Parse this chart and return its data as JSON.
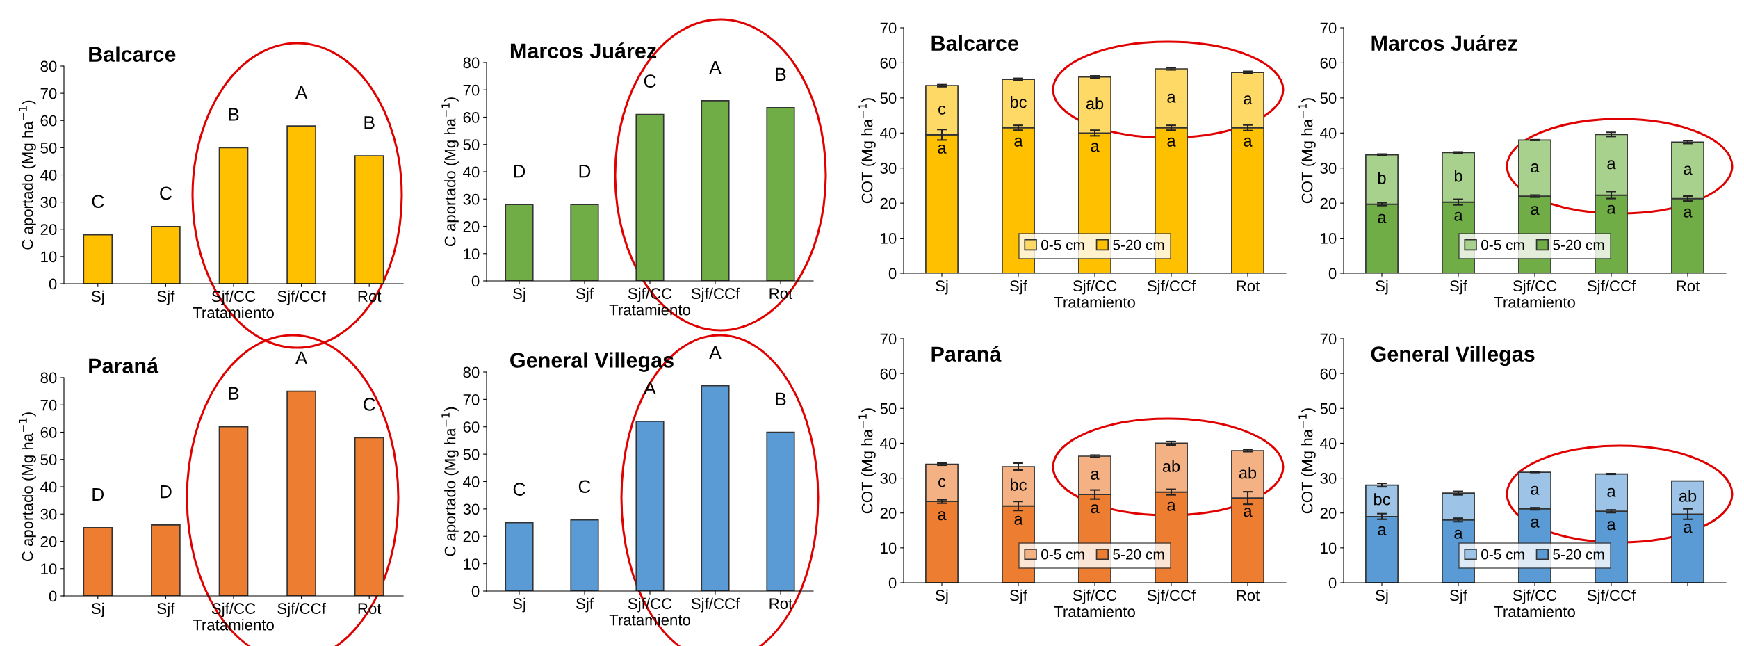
{
  "chart_data": [
    {
      "type": "bar",
      "title": "Balcarce",
      "xlabel": "Tratamiento",
      "ylabel": "C aportado (Mg ha$^{−1}$)",
      "categories": [
        "Sj",
        "Sjf",
        "Sjf/CC",
        "Sjf/CCf",
        "Rot"
      ],
      "values": [
        18,
        21,
        50,
        58,
        47
      ],
      "color": "#ffc000",
      "value_labels": [
        "C",
        "C",
        "B",
        "A",
        "B"
      ],
      "ylim": [
        0,
        80
      ],
      "yticks": [
        0,
        10,
        20,
        30,
        40,
        50,
        60,
        70,
        80
      ]
    },
    {
      "type": "bar",
      "title": "Marcos Juárez",
      "xlabel": "Tratamiento",
      "ylabel": "C aportado (Mg ha$^{−1}$)",
      "categories": [
        "Sj",
        "Sjf",
        "Sjf/CC",
        "Sjf/CCf",
        "Rot"
      ],
      "values": [
        28,
        28,
        61,
        66,
        63.5
      ],
      "color": "#70ad47",
      "value_labels": [
        "D",
        "D",
        "C",
        "A",
        "B"
      ],
      "ylim": [
        0,
        80
      ],
      "yticks": [
        0,
        10,
        20,
        30,
        40,
        50,
        60,
        70,
        80
      ]
    },
    {
      "type": "bar",
      "title": "Balcarce",
      "xlabel": "Tratamiento",
      "ylabel": "COT (Mg ha$^{−1}$)",
      "categories": [
        "Sj",
        "Sjf",
        "Sjf/CC",
        "Sjf/CCf",
        "Rot"
      ],
      "stacked": true,
      "legend": "bottom",
      "ylim": [
        0,
        70
      ],
      "yticks": [
        0,
        10,
        20,
        30,
        40,
        50,
        60,
        70
      ],
      "series": [
        {
          "name": "5-20 cm",
          "color": "#ffc000",
          "values": [
            39.5,
            41.5,
            40,
            41.5,
            41.5
          ],
          "errors": [
            1.5,
            0.7,
            0.8,
            0.7,
            0.8
          ],
          "value_labels": [
            "a",
            "a",
            "a",
            "a",
            "a"
          ]
        },
        {
          "name": "0-5 cm",
          "color": "#ffd966",
          "values": [
            14,
            13.8,
            16,
            16.8,
            15.8
          ],
          "errors": [
            0.3,
            0.3,
            0.3,
            0.3,
            0.3
          ],
          "value_labels": [
            "c",
            "bc",
            "ab",
            "a",
            "a"
          ]
        }
      ]
    },
    {
      "type": "bar",
      "title": "Marcos Juárez",
      "xlabel": "Tratamiento",
      "ylabel": "COT (Mg ha$^{−1}$)",
      "categories": [
        "Sj",
        "Sjf",
        "Sjf/CC",
        "Sjf/CCf",
        "Rot"
      ],
      "stacked": true,
      "legend": "bottom",
      "ylim": [
        0,
        70
      ],
      "yticks": [
        0,
        10,
        20,
        30,
        40,
        50,
        60,
        70
      ],
      "series": [
        {
          "name": "5-20 cm",
          "color": "#70ad47",
          "values": [
            19.7,
            20.3,
            22,
            22.3,
            21.3
          ],
          "errors": [
            0.4,
            0.8,
            0.3,
            1,
            0.7
          ],
          "value_labels": [
            "a",
            "a",
            "a",
            "a",
            "a"
          ]
        },
        {
          "name": "0-5 cm",
          "color": "#a9d18e",
          "values": [
            14.1,
            14.1,
            16,
            17.3,
            16.1
          ],
          "errors": [
            0.2,
            0.2,
            0.1,
            0.6,
            0.4
          ],
          "value_labels": [
            "b",
            "b",
            "a",
            "a",
            "a"
          ]
        }
      ]
    },
    {
      "type": "bar",
      "title": "Paraná",
      "xlabel": "Tratamiento",
      "ylabel": "C aportado (Mg ha$^{−1}$)",
      "categories": [
        "Sj",
        "Sjf",
        "Sjf/CC",
        "Sjf/CCf",
        "Rot"
      ],
      "values": [
        25,
        26,
        62,
        75,
        58
      ],
      "color": "#ed7d31",
      "value_labels": [
        "D",
        "D",
        "B",
        "A",
        "C"
      ],
      "ylim": [
        0,
        80
      ],
      "yticks": [
        0,
        10,
        20,
        30,
        40,
        50,
        60,
        70,
        80
      ]
    },
    {
      "type": "bar",
      "title": "General Villegas",
      "xlabel": "Tratamiento",
      "ylabel": "C aportado (Mg ha$^{−1}$)",
      "categories": [
        "Sj",
        "Sjf",
        "Sjf/CC",
        "Sjf/CCf",
        "Rot"
      ],
      "values": [
        25,
        26,
        62,
        75,
        58
      ],
      "color": "#5b9bd5",
      "value_labels": [
        "C",
        "C",
        "A",
        "A",
        "B"
      ],
      "ylim": [
        0,
        80
      ],
      "yticks": [
        0,
        10,
        20,
        30,
        40,
        50,
        60,
        70,
        80
      ]
    },
    {
      "type": "bar",
      "title": "Paraná",
      "xlabel": "Tratamiento",
      "ylabel": "COT (Mg ha$^{−1}$)",
      "categories": [
        "Sj",
        "Sjf",
        "Sjf/CC",
        "Sjf/CCf",
        "Rot"
      ],
      "stacked": true,
      "legend": "bottom",
      "ylim": [
        0,
        70
      ],
      "yticks": [
        0,
        10,
        20,
        30,
        40,
        50,
        60,
        70
      ],
      "series": [
        {
          "name": "5-20 cm",
          "color": "#ed7d31",
          "values": [
            23.3,
            22,
            25.3,
            26,
            24.3
          ],
          "errors": [
            0.5,
            1.3,
            1.3,
            0.8,
            1.8
          ],
          "value_labels": [
            "a",
            "a",
            "a",
            "a",
            "a"
          ]
        },
        {
          "name": "0-5 cm",
          "color": "#f4b183",
          "values": [
            10.7,
            11.3,
            11,
            14,
            13.6
          ],
          "errors": [
            0.3,
            1,
            0.3,
            0.5,
            0.3
          ],
          "value_labels": [
            "c",
            "bc",
            "a",
            "ab",
            "ab"
          ]
        }
      ]
    },
    {
      "type": "bar",
      "title": "General Villegas",
      "xlabel": "Tratamiento",
      "ylabel": "COT (Mg ha$^{−1}$)",
      "categories": [
        "Sj",
        "Sjf",
        "Sjf/CC",
        "Sjf/CCf",
        null
      ],
      "stacked": true,
      "legend": "bottom",
      "ylim": [
        0,
        70
      ],
      "yticks": [
        0,
        10,
        20,
        30,
        40,
        50,
        60,
        70
      ],
      "series": [
        {
          "name": "5-20 cm",
          "color": "#5b9bd5",
          "values": [
            19,
            18,
            21.2,
            20.5,
            19.7
          ],
          "errors": [
            0.8,
            0.5,
            0.3,
            0.4,
            1.5
          ],
          "value_labels": [
            "a",
            "a",
            "a",
            "a",
            "a"
          ]
        },
        {
          "name": "0-5 cm",
          "color": "#9dc3e6",
          "values": [
            9,
            7.7,
            10.5,
            10.7,
            9.5
          ],
          "errors": [
            0.5,
            0.5,
            0.1,
            0.1,
            null
          ],
          "value_labels": [
            "bc",
            null,
            "a",
            "a",
            "ab"
          ]
        }
      ]
    }
  ]
}
